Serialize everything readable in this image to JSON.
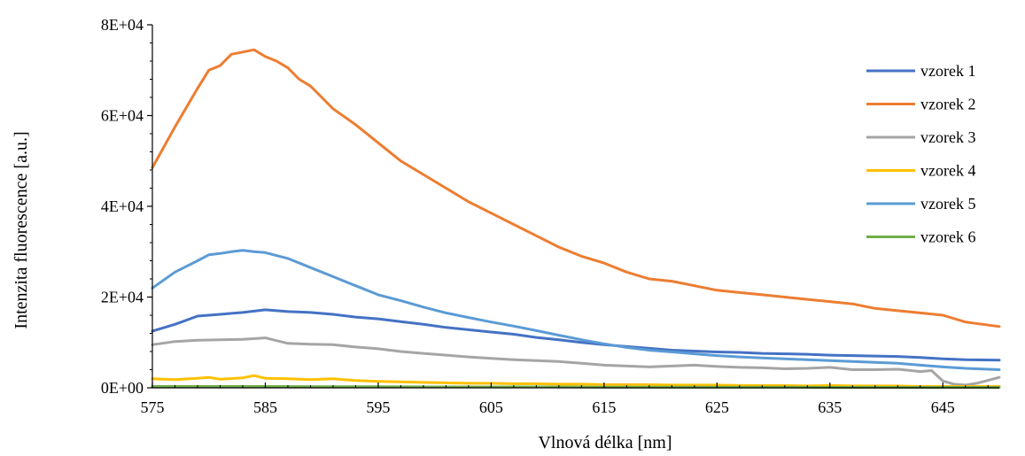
{
  "chart_data": {
    "type": "line",
    "xlabel": "Vlnová délka [nm]",
    "ylabel": "Intenzita fluorescence [a.u.]",
    "xlim": [
      575,
      650
    ],
    "ylim": [
      0,
      80000
    ],
    "x_ticks": [
      575,
      585,
      595,
      605,
      615,
      625,
      635,
      645
    ],
    "x_tick_labels": [
      "575",
      "585",
      "595",
      "605",
      "615",
      "625",
      "635",
      "645"
    ],
    "y_ticks": [
      0,
      20000,
      40000,
      60000,
      80000
    ],
    "y_tick_labels": [
      "0E+00",
      "2E+04",
      "4E+04",
      "6E+04",
      "8E+04"
    ],
    "grid": false,
    "legend_position": "right",
    "series": [
      {
        "name": "vzorek 1",
        "color": "#4472C4",
        "x": [
          575,
          577,
          579,
          581,
          583,
          585,
          587,
          589,
          591,
          593,
          595,
          597,
          599,
          601,
          603,
          605,
          607,
          609,
          611,
          613,
          615,
          617,
          619,
          621,
          623,
          625,
          627,
          629,
          631,
          633,
          635,
          637,
          639,
          641,
          643,
          645,
          647,
          650
        ],
        "y": [
          12500,
          14000,
          15800,
          16200,
          16600,
          17200,
          16800,
          16600,
          16200,
          15600,
          15200,
          14600,
          14000,
          13300,
          12800,
          12300,
          11800,
          11100,
          10600,
          10000,
          9500,
          9100,
          8700,
          8300,
          8100,
          7900,
          7800,
          7600,
          7500,
          7400,
          7200,
          7100,
          7000,
          6900,
          6700,
          6400,
          6200,
          6100
        ]
      },
      {
        "name": "vzorek 2",
        "color": "#ED7D31",
        "x": [
          575,
          577,
          579,
          580,
          581,
          582,
          583,
          584,
          585,
          586,
          587,
          588,
          589,
          590,
          591,
          593,
          595,
          597,
          599,
          601,
          603,
          605,
          607,
          609,
          611,
          613,
          615,
          617,
          619,
          621,
          623,
          625,
          627,
          629,
          631,
          633,
          635,
          637,
          639,
          641,
          643,
          645,
          647,
          650
        ],
        "y": [
          48500,
          57500,
          66000,
          70000,
          71000,
          73500,
          74000,
          74500,
          73000,
          72000,
          70500,
          68000,
          66500,
          64000,
          61500,
          58000,
          54000,
          50000,
          47000,
          44000,
          41000,
          38500,
          36000,
          33500,
          31000,
          29000,
          27500,
          25500,
          24000,
          23500,
          22500,
          21500,
          21000,
          20500,
          20000,
          19500,
          19000,
          18500,
          17500,
          17000,
          16500,
          16000,
          14500,
          13500
        ]
      },
      {
        "name": "vzorek 3",
        "color": "#A5A5A5",
        "x": [
          575,
          577,
          579,
          581,
          583,
          585,
          587,
          589,
          591,
          593,
          595,
          597,
          599,
          601,
          603,
          605,
          607,
          609,
          611,
          613,
          615,
          617,
          619,
          621,
          623,
          625,
          627,
          629,
          631,
          633,
          635,
          637,
          639,
          641,
          643,
          644,
          645,
          646,
          647,
          648,
          650
        ],
        "y": [
          9500,
          10200,
          10500,
          10600,
          10700,
          11000,
          9800,
          9600,
          9500,
          9000,
          8600,
          8000,
          7600,
          7200,
          6800,
          6500,
          6200,
          6000,
          5800,
          5400,
          5000,
          4800,
          4600,
          4800,
          5000,
          4700,
          4500,
          4400,
          4200,
          4300,
          4500,
          4000,
          4000,
          4100,
          3600,
          3800,
          1500,
          800,
          600,
          1000,
          2300
        ]
      },
      {
        "name": "vzorek 4",
        "color": "#FFC000",
        "x": [
          575,
          577,
          579,
          580,
          581,
          583,
          584,
          585,
          587,
          589,
          591,
          593,
          595,
          597,
          599,
          601,
          603,
          605,
          607,
          609,
          611,
          613,
          615,
          617,
          619,
          621,
          623,
          625,
          627,
          629,
          631,
          633,
          635,
          637,
          639,
          641,
          643,
          645,
          647,
          650
        ],
        "y": [
          2000,
          1800,
          2100,
          2300,
          1900,
          2200,
          2700,
          2100,
          2000,
          1800,
          2000,
          1600,
          1400,
          1300,
          1200,
          1100,
          1000,
          1000,
          900,
          900,
          800,
          800,
          700,
          700,
          700,
          600,
          600,
          600,
          500,
          500,
          500,
          400,
          500,
          400,
          400,
          400,
          300,
          300,
          300,
          300
        ]
      },
      {
        "name": "vzorek 5",
        "color": "#5B9BD5",
        "x": [
          575,
          577,
          579,
          580,
          581,
          582,
          583,
          584,
          585,
          587,
          589,
          591,
          593,
          595,
          597,
          599,
          601,
          603,
          605,
          607,
          609,
          611,
          613,
          615,
          617,
          619,
          621,
          623,
          625,
          627,
          629,
          631,
          633,
          635,
          637,
          639,
          641,
          643,
          645,
          647,
          650
        ],
        "y": [
          22000,
          25500,
          28000,
          29300,
          29600,
          30000,
          30300,
          30000,
          29800,
          28500,
          26500,
          24500,
          22500,
          20500,
          19200,
          17800,
          16500,
          15500,
          14500,
          13600,
          12600,
          11600,
          10600,
          9700,
          8900,
          8300,
          7900,
          7500,
          7100,
          6800,
          6600,
          6400,
          6200,
          6000,
          5800,
          5600,
          5400,
          5000,
          4600,
          4300,
          4000
        ]
      },
      {
        "name": "vzorek 6",
        "color": "#70AD47",
        "x": [
          575,
          580,
          585,
          590,
          595,
          600,
          605,
          610,
          615,
          620,
          625,
          630,
          635,
          640,
          645,
          650
        ],
        "y": [
          300,
          300,
          300,
          250,
          250,
          200,
          200,
          200,
          150,
          150,
          150,
          150,
          100,
          100,
          100,
          100
        ]
      }
    ]
  }
}
